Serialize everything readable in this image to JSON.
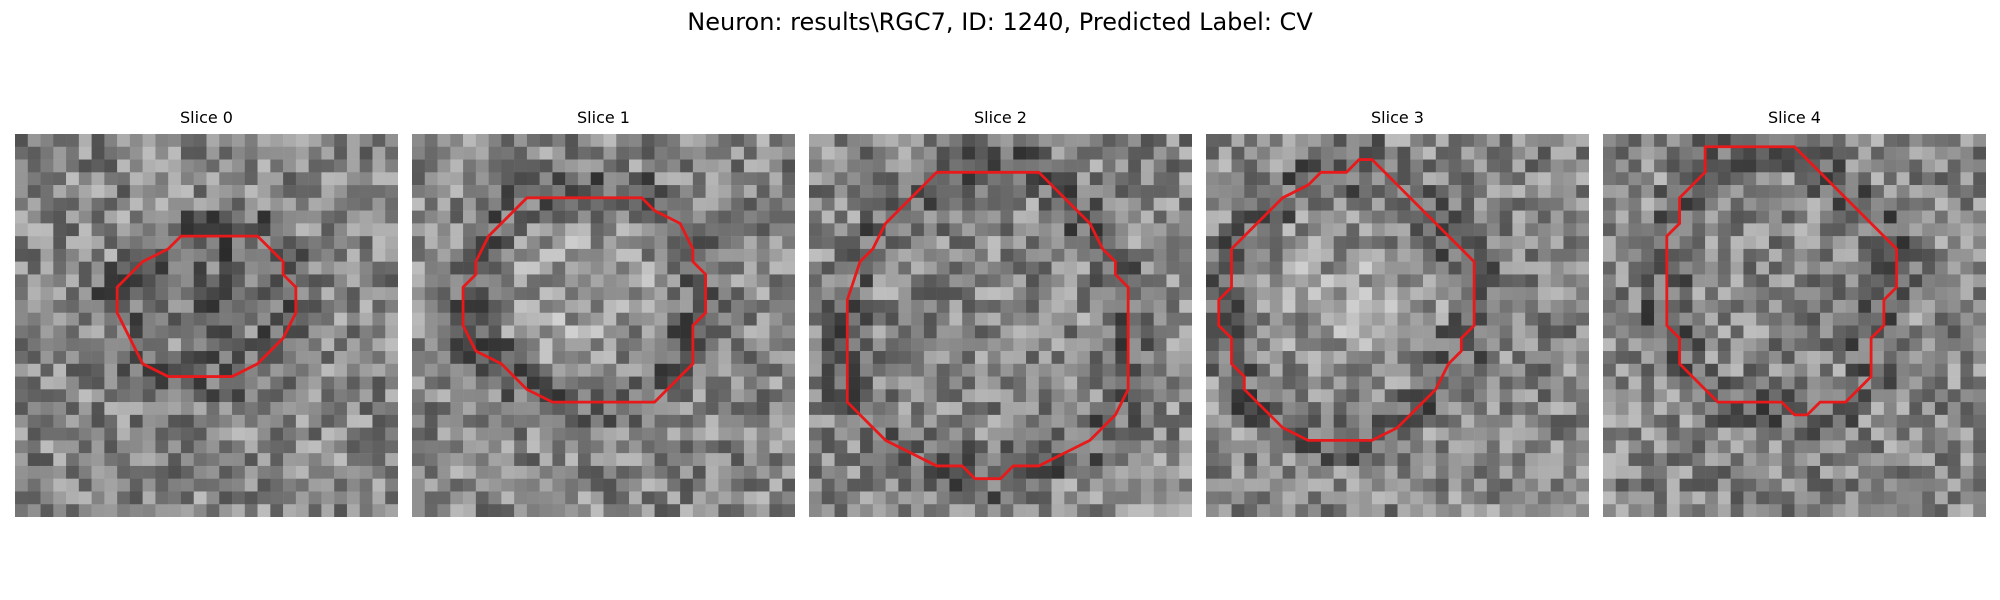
{
  "figure": {
    "title": "Neuron: results\\RGC7, ID: 1240, Predicted Label: CV"
  },
  "colors": {
    "contour": "#e8191a",
    "background": "#ffffff"
  },
  "panels": [
    {
      "title": "Slice 0",
      "seed": 11,
      "darkness": "dark-center",
      "contour": [
        [
          17,
          8
        ],
        [
          19,
          8
        ],
        [
          20,
          9
        ],
        [
          21,
          10
        ],
        [
          21,
          11
        ],
        [
          22,
          12
        ],
        [
          22,
          14
        ],
        [
          21,
          16
        ],
        [
          20,
          17
        ],
        [
          19,
          18
        ],
        [
          17,
          19
        ],
        [
          12,
          19
        ],
        [
          10,
          18
        ],
        [
          9,
          16
        ],
        [
          8,
          14
        ],
        [
          8,
          12
        ],
        [
          9,
          11
        ],
        [
          10,
          10
        ],
        [
          12,
          9
        ],
        [
          13,
          8
        ]
      ]
    },
    {
      "title": "Slice 1",
      "seed": 23,
      "darkness": "bright-center",
      "contour": [
        [
          11,
          5
        ],
        [
          18,
          5
        ],
        [
          19,
          6
        ],
        [
          21,
          7
        ],
        [
          22,
          9
        ],
        [
          22,
          10
        ],
        [
          23,
          11
        ],
        [
          23,
          14
        ],
        [
          22,
          15
        ],
        [
          22,
          18
        ],
        [
          20,
          20
        ],
        [
          19,
          21
        ],
        [
          11,
          21
        ],
        [
          9,
          20
        ],
        [
          7,
          18
        ],
        [
          5,
          17
        ],
        [
          4,
          15
        ],
        [
          4,
          12
        ],
        [
          5,
          11
        ],
        [
          5,
          10
        ],
        [
          6,
          8
        ],
        [
          7,
          7
        ],
        [
          8,
          6
        ],
        [
          9,
          5
        ]
      ]
    },
    {
      "title": "Slice 2",
      "seed": 37,
      "darkness": "mid",
      "contour": [
        [
          10,
          3
        ],
        [
          18,
          3
        ],
        [
          19,
          4
        ],
        [
          20,
          5
        ],
        [
          21,
          6
        ],
        [
          22,
          7
        ],
        [
          23,
          9
        ],
        [
          24,
          10
        ],
        [
          24,
          11
        ],
        [
          25,
          12
        ],
        [
          25,
          20
        ],
        [
          24,
          22
        ],
        [
          23,
          23
        ],
        [
          22,
          24
        ],
        [
          20,
          25
        ],
        [
          18,
          26
        ],
        [
          16,
          26
        ],
        [
          15,
          27
        ],
        [
          13,
          27
        ],
        [
          12,
          26
        ],
        [
          10,
          26
        ],
        [
          8,
          25
        ],
        [
          6,
          24
        ],
        [
          5,
          23
        ],
        [
          4,
          22
        ],
        [
          3,
          21
        ],
        [
          3,
          13
        ],
        [
          4,
          10
        ],
        [
          5,
          9
        ],
        [
          6,
          7
        ],
        [
          7,
          6
        ],
        [
          8,
          5
        ]
      ]
    },
    {
      "title": "Slice 3",
      "seed": 51,
      "darkness": "bright-center",
      "contour": [
        [
          12,
          2
        ],
        [
          13,
          2
        ],
        [
          14,
          3
        ],
        [
          15,
          4
        ],
        [
          16,
          5
        ],
        [
          17,
          6
        ],
        [
          18,
          7
        ],
        [
          19,
          8
        ],
        [
          20,
          9
        ],
        [
          21,
          10
        ],
        [
          21,
          15
        ],
        [
          20,
          16
        ],
        [
          20,
          17
        ],
        [
          19,
          18
        ],
        [
          18,
          20
        ],
        [
          17,
          21
        ],
        [
          16,
          22
        ],
        [
          15,
          23
        ],
        [
          13,
          24
        ],
        [
          8,
          24
        ],
        [
          6,
          23
        ],
        [
          5,
          22
        ],
        [
          4,
          21
        ],
        [
          3,
          20
        ],
        [
          3,
          19
        ],
        [
          2,
          18
        ],
        [
          2,
          16
        ],
        [
          1,
          15
        ],
        [
          1,
          13
        ],
        [
          2,
          12
        ],
        [
          2,
          9
        ],
        [
          3,
          8
        ],
        [
          4,
          7
        ],
        [
          5,
          6
        ],
        [
          6,
          5
        ],
        [
          8,
          4
        ],
        [
          9,
          3
        ],
        [
          11,
          3
        ]
      ]
    },
    {
      "title": "Slice 4",
      "seed": 67,
      "darkness": "mid",
      "contour": [
        [
          8,
          1
        ],
        [
          15,
          1
        ],
        [
          16,
          2
        ],
        [
          17,
          3
        ],
        [
          18,
          4
        ],
        [
          19,
          5
        ],
        [
          20,
          6
        ],
        [
          21,
          7
        ],
        [
          22,
          8
        ],
        [
          23,
          9
        ],
        [
          23,
          12
        ],
        [
          22,
          13
        ],
        [
          22,
          15
        ],
        [
          21,
          16
        ],
        [
          21,
          19
        ],
        [
          20,
          20
        ],
        [
          19,
          21
        ],
        [
          17,
          21
        ],
        [
          16,
          22
        ],
        [
          15,
          22
        ],
        [
          14,
          21
        ],
        [
          9,
          21
        ],
        [
          8,
          20
        ],
        [
          7,
          19
        ],
        [
          6,
          18
        ],
        [
          6,
          16
        ],
        [
          5,
          15
        ],
        [
          5,
          8
        ],
        [
          6,
          7
        ],
        [
          6,
          5
        ],
        [
          7,
          4
        ],
        [
          8,
          3
        ]
      ]
    }
  ]
}
